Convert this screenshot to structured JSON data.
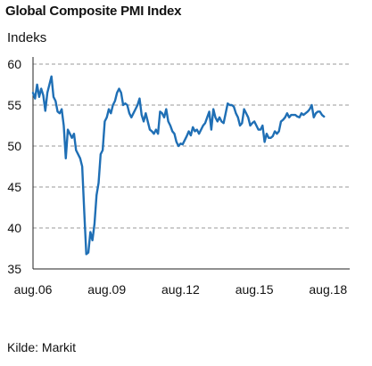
{
  "chart_data": {
    "type": "line",
    "title": "Global Composite PMI Index",
    "ylabel": "Indeks",
    "xlabel": "",
    "source": "Kilde: Markit",
    "ylim": [
      35,
      60
    ],
    "yticks": [
      35,
      40,
      45,
      50,
      55,
      60
    ],
    "xlim": [
      "2006-08",
      "2018-12"
    ],
    "xticks": [
      {
        "date": "2006-08",
        "label": "aug.06"
      },
      {
        "date": "2009-08",
        "label": "aug.09"
      },
      {
        "date": "2012-08",
        "label": "aug.12"
      },
      {
        "date": "2015-08",
        "label": "aug.15"
      },
      {
        "date": "2018-08",
        "label": "aug.18"
      }
    ],
    "grid": "horizontal dashed",
    "line_color": "#1f6fb5",
    "series": [
      {
        "points": [
          [
            "2006-08",
            56.5
          ],
          [
            "2006-09",
            55.8
          ],
          [
            "2006-10",
            57.5
          ],
          [
            "2006-11",
            56.0
          ],
          [
            "2006-12",
            57.0
          ],
          [
            "2007-01",
            56.2
          ],
          [
            "2007-02",
            54.3
          ],
          [
            "2007-03",
            56.5
          ],
          [
            "2007-04",
            57.5
          ],
          [
            "2007-05",
            58.5
          ],
          [
            "2007-06",
            56.0
          ],
          [
            "2007-07",
            55.5
          ],
          [
            "2007-08",
            54.2
          ],
          [
            "2007-09",
            54.0
          ],
          [
            "2007-10",
            54.5
          ],
          [
            "2007-11",
            52.5
          ],
          [
            "2007-12",
            48.5
          ],
          [
            "2008-01",
            52.0
          ],
          [
            "2008-02",
            51.5
          ],
          [
            "2008-03",
            51.0
          ],
          [
            "2008-04",
            51.5
          ],
          [
            "2008-05",
            49.5
          ],
          [
            "2008-06",
            49.0
          ],
          [
            "2008-07",
            48.5
          ],
          [
            "2008-08",
            47.5
          ],
          [
            "2008-09",
            42.0
          ],
          [
            "2008-10",
            36.8
          ],
          [
            "2008-11",
            37.0
          ],
          [
            "2008-12",
            39.5
          ],
          [
            "2009-01",
            38.5
          ],
          [
            "2009-02",
            40.5
          ],
          [
            "2009-03",
            44.0
          ],
          [
            "2009-04",
            45.5
          ],
          [
            "2009-05",
            49.0
          ],
          [
            "2009-06",
            49.5
          ],
          [
            "2009-07",
            53.0
          ],
          [
            "2009-08",
            53.5
          ],
          [
            "2009-09",
            54.5
          ],
          [
            "2009-10",
            54.0
          ],
          [
            "2009-11",
            55.0
          ],
          [
            "2009-12",
            55.5
          ],
          [
            "2010-01",
            56.5
          ],
          [
            "2010-02",
            57.0
          ],
          [
            "2010-03",
            56.5
          ],
          [
            "2010-04",
            55.0
          ],
          [
            "2010-05",
            55.2
          ],
          [
            "2010-06",
            55.0
          ],
          [
            "2010-07",
            54.0
          ],
          [
            "2010-08",
            53.5
          ],
          [
            "2010-09",
            54.0
          ],
          [
            "2010-10",
            54.5
          ],
          [
            "2010-11",
            55.0
          ],
          [
            "2010-12",
            55.8
          ],
          [
            "2011-01",
            53.8
          ],
          [
            "2011-02",
            53.0
          ],
          [
            "2011-03",
            54.0
          ],
          [
            "2011-04",
            53.0
          ],
          [
            "2011-05",
            52.0
          ],
          [
            "2011-06",
            51.8
          ],
          [
            "2011-07",
            51.5
          ],
          [
            "2011-08",
            52.0
          ],
          [
            "2011-09",
            51.5
          ],
          [
            "2011-10",
            54.2
          ],
          [
            "2011-11",
            54.0
          ],
          [
            "2011-12",
            53.5
          ],
          [
            "2012-01",
            54.5
          ],
          [
            "2012-02",
            53.0
          ],
          [
            "2012-03",
            52.5
          ],
          [
            "2012-04",
            51.8
          ],
          [
            "2012-05",
            51.5
          ],
          [
            "2012-06",
            50.5
          ],
          [
            "2012-07",
            50.0
          ],
          [
            "2012-08",
            50.3
          ],
          [
            "2012-09",
            50.2
          ],
          [
            "2012-10",
            50.7
          ],
          [
            "2012-11",
            51.2
          ],
          [
            "2012-12",
            51.8
          ],
          [
            "2013-01",
            51.3
          ],
          [
            "2013-02",
            52.3
          ],
          [
            "2013-03",
            51.8
          ],
          [
            "2013-04",
            52.0
          ],
          [
            "2013-05",
            51.5
          ],
          [
            "2013-06",
            52.0
          ],
          [
            "2013-07",
            52.5
          ],
          [
            "2013-08",
            52.8
          ],
          [
            "2013-09",
            53.5
          ],
          [
            "2013-10",
            54.2
          ],
          [
            "2013-11",
            52.0
          ],
          [
            "2013-12",
            54.5
          ],
          [
            "2014-01",
            53.5
          ],
          [
            "2014-02",
            53.0
          ],
          [
            "2014-03",
            53.5
          ],
          [
            "2014-04",
            53.0
          ],
          [
            "2014-05",
            52.8
          ],
          [
            "2014-06",
            54.0
          ],
          [
            "2014-07",
            55.2
          ],
          [
            "2014-08",
            55.0
          ],
          [
            "2014-09",
            55.0
          ],
          [
            "2014-10",
            54.8
          ],
          [
            "2014-11",
            54.0
          ],
          [
            "2014-12",
            53.5
          ],
          [
            "2015-01",
            52.5
          ],
          [
            "2015-02",
            52.8
          ],
          [
            "2015-03",
            54.5
          ],
          [
            "2015-04",
            54.0
          ],
          [
            "2015-05",
            53.5
          ],
          [
            "2015-06",
            52.5
          ],
          [
            "2015-07",
            52.8
          ],
          [
            "2015-08",
            53.0
          ],
          [
            "2015-09",
            52.5
          ],
          [
            "2015-10",
            52.0
          ],
          [
            "2015-11",
            52.0
          ],
          [
            "2015-12",
            52.5
          ],
          [
            "2016-01",
            50.5
          ],
          [
            "2016-02",
            51.5
          ],
          [
            "2016-03",
            51.0
          ],
          [
            "2016-04",
            51.0
          ],
          [
            "2016-05",
            51.2
          ],
          [
            "2016-06",
            51.8
          ],
          [
            "2016-07",
            51.5
          ],
          [
            "2016-08",
            51.8
          ],
          [
            "2016-09",
            53.0
          ],
          [
            "2016-10",
            53.2
          ],
          [
            "2016-11",
            53.5
          ],
          [
            "2016-12",
            54.0
          ],
          [
            "2017-01",
            53.5
          ],
          [
            "2017-02",
            53.8
          ],
          [
            "2017-03",
            53.8
          ],
          [
            "2017-04",
            53.8
          ],
          [
            "2017-05",
            53.6
          ],
          [
            "2017-06",
            53.5
          ],
          [
            "2017-07",
            54.0
          ],
          [
            "2017-08",
            53.8
          ],
          [
            "2017-09",
            54.0
          ],
          [
            "2017-10",
            54.2
          ],
          [
            "2017-11",
            54.5
          ],
          [
            "2017-12",
            55.0
          ],
          [
            "2018-01",
            53.5
          ],
          [
            "2018-02",
            54.0
          ],
          [
            "2018-03",
            54.2
          ],
          [
            "2018-04",
            54.2
          ],
          [
            "2018-05",
            53.8
          ],
          [
            "2018-06",
            53.6
          ]
        ]
      }
    ]
  }
}
